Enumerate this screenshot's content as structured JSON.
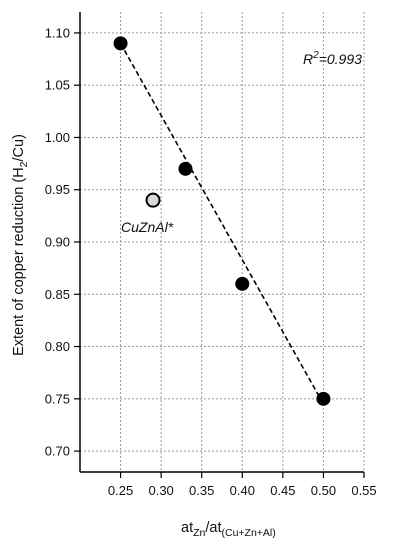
{
  "chart_data": {
    "type": "scatter",
    "xlabel": {
      "main": "at",
      "sub1": "Zn",
      "mid": "/at",
      "sub2": "(Cu+Zn+Al)"
    },
    "ylabel": {
      "pre": "Extent of copper reduction (H",
      "sub": "2",
      "post": "/Cu)"
    },
    "xlim": [
      0.2,
      0.55
    ],
    "ylim": [
      0.68,
      1.12
    ],
    "x_ticks": [
      0.25,
      0.3,
      0.35,
      0.4,
      0.45,
      0.5,
      0.55
    ],
    "x_tick_labels": [
      "0.25",
      "0.30",
      "0.35",
      "0.40",
      "0.45",
      "0.50",
      "0.55"
    ],
    "y_ticks": [
      0.7,
      0.75,
      0.8,
      0.85,
      0.9,
      0.95,
      1.0,
      1.05,
      1.1
    ],
    "y_tick_labels": [
      "0.70",
      "0.75",
      "0.80",
      "0.85",
      "0.90",
      "0.95",
      "1.00",
      "1.05",
      "1.10"
    ],
    "grid": true,
    "series": [
      {
        "points": [
          {
            "x": 0.25,
            "y": 1.09
          },
          {
            "x": 0.33,
            "y": 0.97
          },
          {
            "x": 0.4,
            "y": 0.86
          },
          {
            "x": 0.5,
            "y": 0.75
          }
        ],
        "color": "#000000"
      },
      {
        "name": "CuZnAl*",
        "points": [
          {
            "x": 0.29,
            "y": 0.94
          }
        ],
        "color": "#d9d9d9"
      }
    ],
    "fit_line": {
      "from": [
        0.25,
        1.09
      ],
      "to": [
        0.5,
        0.745
      ]
    },
    "annotations": {
      "r2_main": "R",
      "r2_sup": "2",
      "r2_value": "=0.993",
      "outlier_label": "CuZnAl*"
    }
  }
}
